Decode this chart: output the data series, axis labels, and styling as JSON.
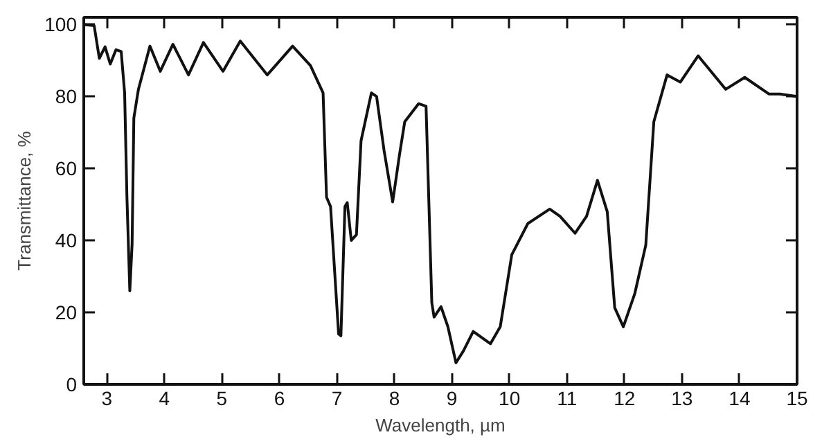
{
  "chart_data": {
    "type": "line",
    "xlabel": "Wavelength, µm",
    "ylabel": "Transmittance, %",
    "xlim": [
      2.6,
      15
    ],
    "ylim": [
      0,
      102
    ],
    "xticks": [
      3,
      4,
      5,
      6,
      7,
      8,
      9,
      10,
      11,
      12,
      13,
      14,
      15
    ],
    "yticks": [
      0,
      20,
      40,
      60,
      80,
      100
    ],
    "grid": false,
    "marker": "none",
    "line_style": "solid",
    "series": [
      {
        "color": "#111111",
        "x": [
          2.6,
          2.78,
          2.87,
          2.97,
          3.06,
          3.16,
          3.25,
          3.31,
          3.35,
          3.4,
          3.44,
          3.47,
          3.55,
          3.75,
          3.93,
          4.15,
          4.42,
          4.68,
          5.02,
          5.32,
          5.79,
          6.23,
          6.54,
          6.76,
          6.82,
          6.89,
          7.03,
          7.07,
          7.14,
          7.18,
          7.25,
          7.34,
          7.42,
          7.6,
          7.69,
          7.82,
          7.97,
          8.09,
          8.18,
          8.42,
          8.55,
          8.65,
          8.69,
          8.81,
          8.93,
          9.07,
          9.2,
          9.37,
          9.67,
          9.84,
          10.04,
          10.32,
          10.7,
          10.88,
          11.14,
          11.34,
          11.53,
          11.7,
          11.83,
          11.98,
          12.18,
          12.37,
          12.51,
          12.74,
          12.97,
          13.28,
          13.76,
          14.09,
          14.51,
          14.7,
          15.0
        ],
        "values": [
          100,
          99.7,
          90.6,
          93.8,
          89,
          93,
          92.5,
          81,
          52,
          26,
          39,
          74,
          82,
          94,
          87,
          94.5,
          86,
          95,
          87,
          95.4,
          86,
          94,
          88.6,
          81,
          52,
          49.4,
          14,
          13.5,
          49.4,
          50.5,
          40,
          41.6,
          67.7,
          81,
          80,
          65,
          50.7,
          64,
          73,
          78,
          77.3,
          22.7,
          18.7,
          21.6,
          16,
          6,
          9.3,
          14.7,
          11.3,
          16,
          36,
          44.7,
          48.7,
          46.7,
          42,
          46.7,
          56.7,
          48,
          21.3,
          16,
          25.3,
          38.7,
          73,
          86,
          84,
          91.3,
          82,
          85.3,
          80.7,
          80.7,
          80
        ]
      }
    ]
  }
}
